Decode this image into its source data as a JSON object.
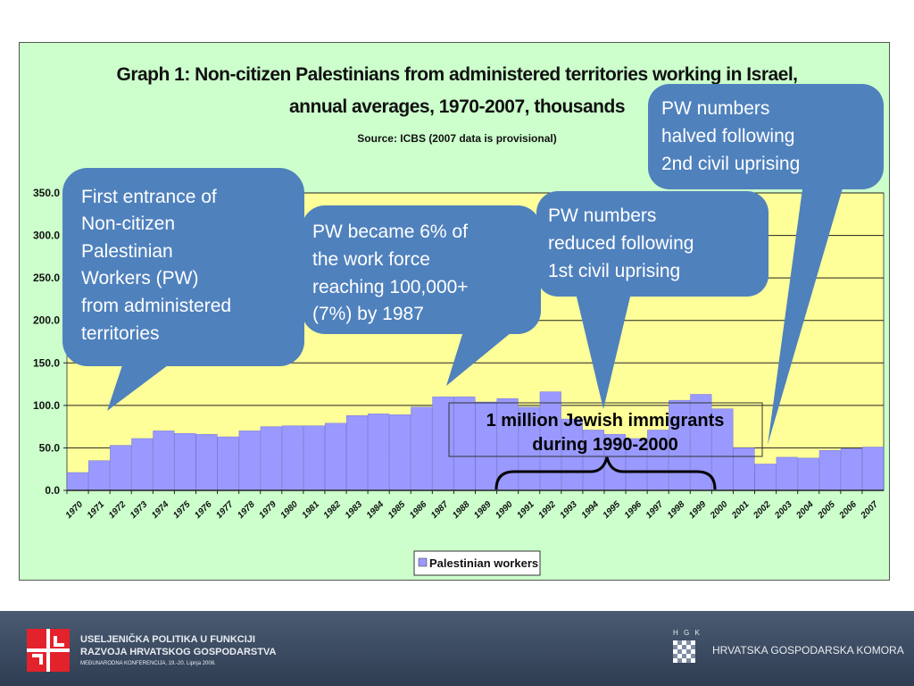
{
  "chart_data": {
    "type": "bar",
    "title": "Graph 1: Non-citizen Palestinians from administered territories working in Israel,",
    "subtitle": "annual averages, 1970-2007, thousands",
    "source": "Source: ICBS (2007 data is provisional)",
    "categories": [
      "1970",
      "1971",
      "1972",
      "1973",
      "1974",
      "1975",
      "1976",
      "1977",
      "1978",
      "1979",
      "1980",
      "1981",
      "1982",
      "1983",
      "1984",
      "1985",
      "1986",
      "1987",
      "1988",
      "1989",
      "1990",
      "1991",
      "1992",
      "1993",
      "1994",
      "1995",
      "1996",
      "1997",
      "1998",
      "1999",
      "2000",
      "2001",
      "2002",
      "2003",
      "2004",
      "2005",
      "2006",
      "2007"
    ],
    "series": [
      {
        "name": "Palestinian workers",
        "values": [
          21,
          35,
          53,
          61,
          70,
          67,
          66,
          63,
          70,
          75,
          76,
          76,
          79,
          88,
          90,
          89,
          98,
          110,
          110,
          104,
          108,
          98,
          116,
          84,
          71,
          66,
          61,
          71,
          106,
          113,
          96,
          50,
          31,
          39,
          38,
          47,
          49,
          51
        ]
      }
    ],
    "ylim": [
      0,
      350
    ],
    "yticks": [
      "0.0",
      "50.0",
      "100.0",
      "150.0",
      "200.0",
      "250.0",
      "300.0",
      "350.0"
    ],
    "grid": true,
    "legend_position": "bottom",
    "colors": {
      "bar": "#9999ff",
      "plot_bg": "#ffff99",
      "frame_bg": "#ccffcc",
      "callout": "#4f81bd"
    }
  },
  "callouts": {
    "c1": [
      "First entrance of",
      "Non-citizen",
      "Palestinian",
      "Workers (PW)",
      "from administered",
      "territories"
    ],
    "c2": [
      "PW became 6% of",
      "the work force",
      "reaching 100,000+",
      "(7%) by 1987"
    ],
    "c3": [
      "PW numbers",
      "reduced following",
      "1st civil uprising"
    ],
    "c4": [
      "PW numbers",
      "halved following",
      "2nd civil uprising"
    ]
  },
  "immigrants_box": [
    "1 million Jewish immigrants",
    "during 1990-2000"
  ],
  "footer": {
    "conference_line1": "USELJENIČKA POLITIKA U FUNKCIJI",
    "conference_line2": "RAZVOJA HRVATSKOG GOSPODARSTVA",
    "conference_line3": "MEĐUNARODNA KONFERENCIJA, 19.-20. Lipnja 2008.",
    "hgk_abbrev": "H G K",
    "hgk_name": "HRVATSKA GOSPODARSKA KOMORA"
  }
}
